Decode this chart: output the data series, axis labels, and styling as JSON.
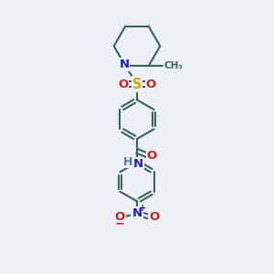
{
  "bg_color": "#edf1f5",
  "bond_color": "#3a6060",
  "bond_width": 1.5,
  "colors": {
    "N": "#2020cc",
    "O": "#cc2020",
    "S": "#ccaa00",
    "C": "#3a6060",
    "H": "#5577aa"
  },
  "font_size": 9.5
}
